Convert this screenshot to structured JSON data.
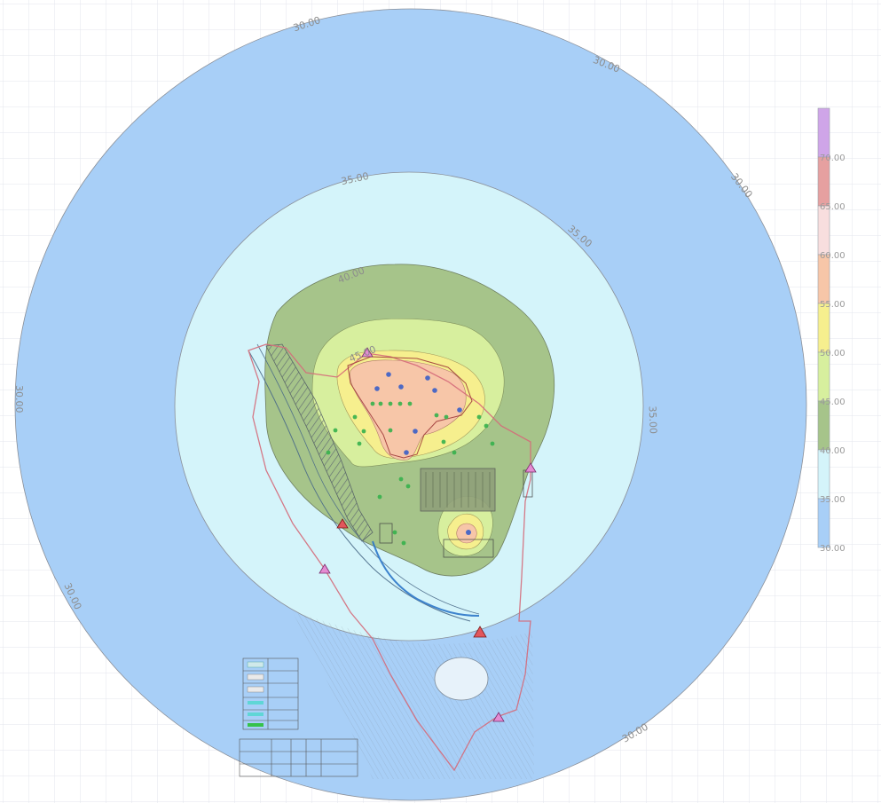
{
  "map": {
    "contour_labels": {
      "outer_top": "30.00",
      "outer_top_right": "30.00",
      "outer_right": "30.00",
      "outer_left": "30.00",
      "outer_lower_left": "30.00",
      "outer_bottom_right": "30.00",
      "mid_top": "35.00",
      "mid_top_right": "35.00",
      "mid_right": "35.00",
      "inner_top": "40.00",
      "core_top": "45.00"
    },
    "colors": {
      "band_30": "#a8cff7",
      "band_35": "#d4f4fa",
      "band_40": "#a6c48a",
      "band_45": "#d7ef9e",
      "band_50": "#f6ef8e",
      "band_55": "#f7c6a8",
      "band_60": "#f8dede",
      "band_65": "#e6a0a0",
      "band_70": "#cfa5e8",
      "grid": "#e3e5ec",
      "boundary_line": "#d56b7a",
      "marker": "#e2565c"
    },
    "legend": {
      "levels": [
        "70.00",
        "65.00",
        "60.00",
        "55.00",
        "50.00",
        "45.00",
        "40.00",
        "35.00",
        "30.00"
      ],
      "colors": [
        "#cfa5e8",
        "#e6a0a0",
        "#f8dede",
        "#f7c6a8",
        "#f6ef8e",
        "#d7ef9e",
        "#a6c48a",
        "#d4f4fa",
        "#a8cff7"
      ]
    }
  }
}
